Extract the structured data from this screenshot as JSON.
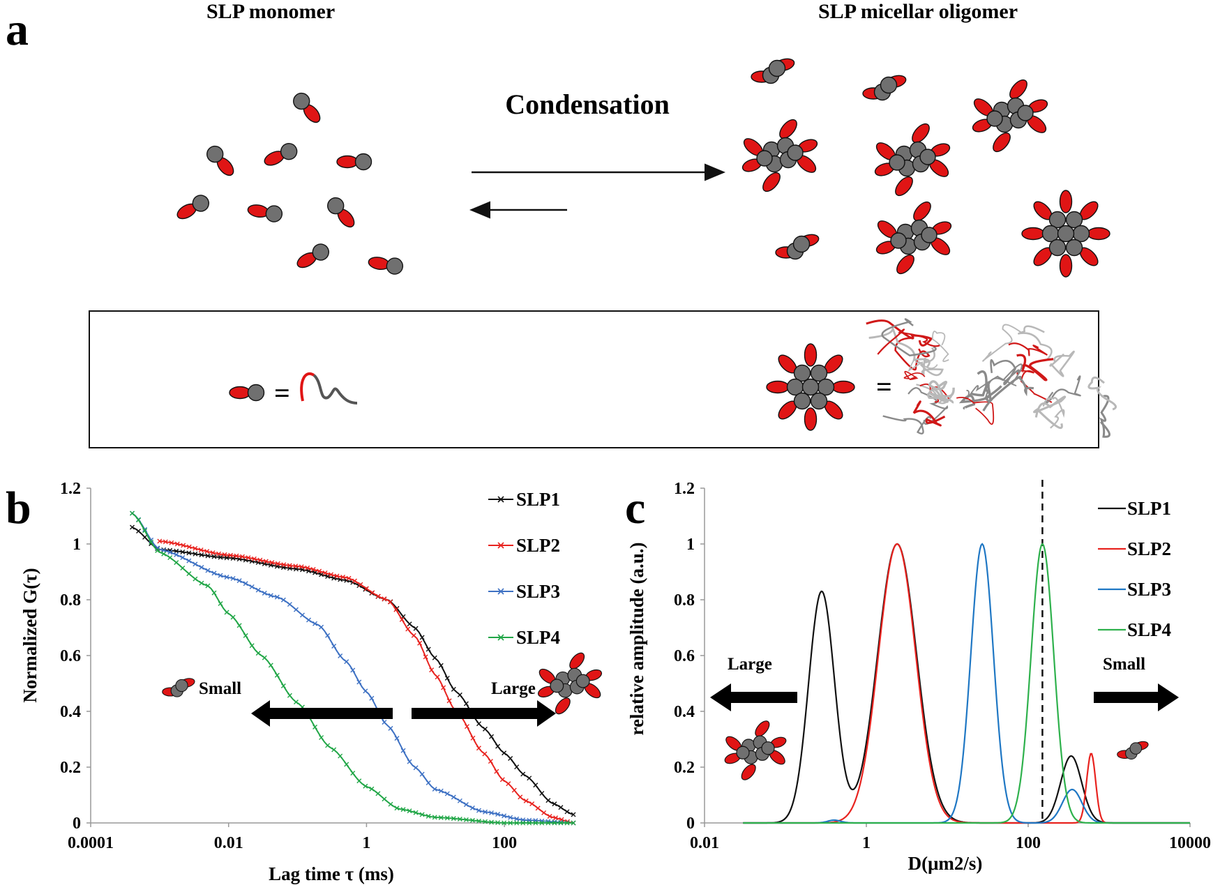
{
  "panel_a": {
    "letter": "a",
    "left_heading": "SLP monomer",
    "right_heading": "SLP micellar oligomer",
    "process_label": "Condensation",
    "equals": "="
  },
  "chart_data": [
    {
      "panel": "b",
      "type": "line",
      "xlabel": "Lag time τ (ms)",
      "ylabel": "Normalized G(τ)",
      "x_scale": "log",
      "xlim": [
        0.0001,
        1000
      ],
      "ylim": [
        0,
        1.2
      ],
      "x_ticks": [
        "0.0001",
        "0.01",
        "1",
        "100"
      ],
      "y_ticks": [
        "0",
        "0.2",
        "0.4",
        "0.6",
        "0.8",
        "1",
        "1.2"
      ],
      "legend_position": "top-right",
      "series": [
        {
          "name": "SLP1",
          "color": "#111111",
          "start": 0.0004,
          "points": [
            [
              0.0004,
              1.06
            ],
            [
              0.001,
              0.98
            ],
            [
              0.01,
              0.95
            ],
            [
              0.1,
              0.91
            ],
            [
              0.5,
              0.87
            ],
            [
              2,
              0.8
            ],
            [
              5,
              0.7
            ],
            [
              10,
              0.59
            ],
            [
              20,
              0.47
            ],
            [
              50,
              0.34
            ],
            [
              100,
              0.25
            ],
            [
              200,
              0.17
            ],
            [
              500,
              0.07
            ],
            [
              1000,
              0.03
            ]
          ]
        },
        {
          "name": "SLP2",
          "color": "#e8231f",
          "start": 0.001,
          "points": [
            [
              0.001,
              1.01
            ],
            [
              0.01,
              0.96
            ],
            [
              0.1,
              0.92
            ],
            [
              0.5,
              0.88
            ],
            [
              2,
              0.8
            ],
            [
              5,
              0.67
            ],
            [
              10,
              0.53
            ],
            [
              20,
              0.4
            ],
            [
              50,
              0.25
            ],
            [
              100,
              0.15
            ],
            [
              200,
              0.08
            ],
            [
              500,
              0.02
            ],
            [
              1000,
              0.0
            ]
          ]
        },
        {
          "name": "SLP3",
          "color": "#3e71c3",
          "start": 0.0004,
          "points": [
            [
              0.0004,
              1.11
            ],
            [
              0.001,
              0.98
            ],
            [
              0.01,
              0.88
            ],
            [
              0.05,
              0.81
            ],
            [
              0.2,
              0.71
            ],
            [
              0.5,
              0.58
            ],
            [
              1,
              0.47
            ],
            [
              2,
              0.35
            ],
            [
              5,
              0.2
            ],
            [
              10,
              0.12
            ],
            [
              50,
              0.04
            ],
            [
              200,
              0.01
            ],
            [
              1000,
              0.0
            ]
          ]
        },
        {
          "name": "SLP4",
          "color": "#21a647",
          "start": 0.0004,
          "points": [
            [
              0.0004,
              1.11
            ],
            [
              0.001,
              0.97
            ],
            [
              0.005,
              0.85
            ],
            [
              0.01,
              0.75
            ],
            [
              0.03,
              0.6
            ],
            [
              0.1,
              0.43
            ],
            [
              0.3,
              0.27
            ],
            [
              1,
              0.13
            ],
            [
              3,
              0.05
            ],
            [
              10,
              0.02
            ],
            [
              100,
              0.0
            ],
            [
              1000,
              0.0
            ]
          ]
        }
      ],
      "annotations": {
        "small": "Small",
        "large": "Large"
      }
    },
    {
      "panel": "c",
      "type": "line",
      "xlabel": "D(μm2/s)",
      "ylabel": "relative amplitude (a.u.)",
      "x_scale": "log",
      "xlim": [
        0.01,
        10000
      ],
      "ylim": [
        0,
        1.2
      ],
      "x_ticks": [
        "0.01",
        "1",
        "100",
        "10000"
      ],
      "y_ticks": [
        "0",
        "0.2",
        "0.4",
        "0.6",
        "0.8",
        "1",
        "1.2"
      ],
      "legend_position": "top-right",
      "dashed_line_x": 150,
      "series": [
        {
          "name": "SLP1",
          "color": "#111111",
          "peaks": [
            {
              "center": 0.28,
              "amp": 0.83,
              "width": 0.16
            },
            {
              "center": 2.4,
              "amp": 1.0,
              "width": 0.24
            },
            {
              "center": 340,
              "amp": 0.24,
              "width": 0.13
            }
          ]
        },
        {
          "name": "SLP2",
          "color": "#e8231f",
          "peaks": [
            {
              "center": 2.4,
              "amp": 1.0,
              "width": 0.23
            },
            {
              "center": 600,
              "amp": 0.25,
              "width": 0.055
            }
          ]
        },
        {
          "name": "SLP3",
          "color": "#1f77c4",
          "peaks": [
            {
              "center": 27,
              "amp": 1.0,
              "width": 0.14
            },
            {
              "center": 0.4,
              "amp": 0.01,
              "width": 0.08
            },
            {
              "center": 350,
              "amp": 0.12,
              "width": 0.12
            }
          ]
        },
        {
          "name": "SLP4",
          "color": "#2eb14c",
          "peaks": [
            {
              "center": 150,
              "amp": 1.0,
              "width": 0.14
            }
          ]
        }
      ],
      "annotations": {
        "large": "Large",
        "small": "Small"
      }
    }
  ]
}
